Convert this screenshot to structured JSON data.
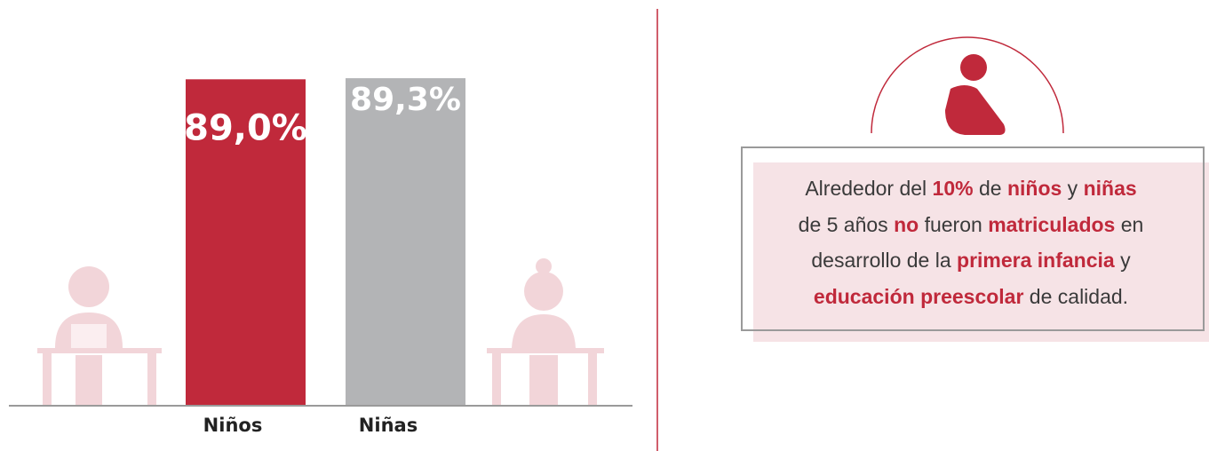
{
  "chart_data": {
    "type": "bar",
    "categories": [
      "Niños",
      "Niñas"
    ],
    "values": [
      89.0,
      89.3
    ],
    "value_labels": [
      "89,0%",
      "89,3%"
    ],
    "colors": [
      "#c0293b",
      "#b3b4b6"
    ]
  },
  "note": {
    "lines": [
      [
        {
          "text": "Alrededor del ",
          "bold": false
        },
        {
          "text": "10%",
          "bold": true
        },
        {
          "text": " de ",
          "bold": false
        },
        {
          "text": "niños",
          "bold": true
        },
        {
          "text": " y ",
          "bold": false
        },
        {
          "text": "niñas",
          "bold": true
        }
      ],
      [
        {
          "text": "de 5 años ",
          "bold": false
        },
        {
          "text": "no",
          "bold": true
        },
        {
          "text": " fueron ",
          "bold": false
        },
        {
          "text": "matriculados",
          "bold": true
        },
        {
          "text": " en",
          "bold": false
        }
      ],
      [
        {
          "text": "desarrollo de la ",
          "bold": false
        },
        {
          "text": "primera infancia",
          "bold": true
        },
        {
          "text": " y",
          "bold": false
        }
      ],
      [
        {
          "text": "educación preescolar",
          "bold": true
        },
        {
          "text": " de calidad.",
          "bold": false
        }
      ]
    ]
  }
}
